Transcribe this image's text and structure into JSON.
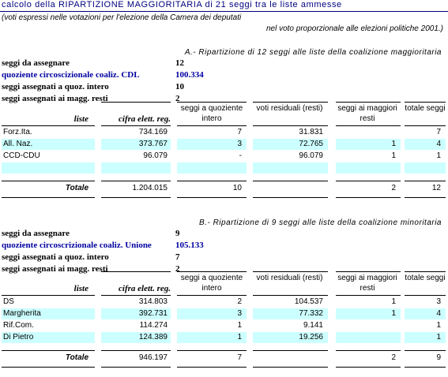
{
  "title": "calcolo della RIPARTIZIONE MAGGIORITARIA di 21 seggi tra le liste ammesse",
  "note_line1": "(voti espressi nelle votazioni per l'elezione della Camera dei deputati",
  "note_line2": "nel voto proporzionale alle elezioni politiche 2001.)",
  "headers": {
    "liste": "liste",
    "cifra": "cifra elett. reg.",
    "seggi_q": "seggi a quoziente intero",
    "voti_r": "voti residuali (resti)",
    "seggi_m": "seggi ai maggiori resti",
    "totale": "totale seggi"
  },
  "section_a": {
    "title": "A.- Ripartizione di 12 seggi alle liste della coalizione maggioritaria",
    "info": [
      {
        "label": "seggi da assegnare",
        "value": "12",
        "blue": false
      },
      {
        "label": "quoziente circoscizionale coaliz. CDL",
        "value": "100.334",
        "blue": true
      },
      {
        "label": "seggi assegnati a quoz. intero",
        "value": "10",
        "blue": false
      },
      {
        "label": "seggi assegnati ai magg. resti",
        "value": "2",
        "blue": false
      }
    ],
    "rows": [
      {
        "name": "Forz.Ita.",
        "cifra": "734.169",
        "seggi_q": "7",
        "voti_r": "31.831",
        "seggi_m": "",
        "totale": "7",
        "cyan": false
      },
      {
        "name": "All. Naz.",
        "cifra": "373.767",
        "seggi_q": "3",
        "voti_r": "72.765",
        "seggi_m": "1",
        "totale": "4",
        "cyan": true
      },
      {
        "name": "CCD-CDU",
        "cifra": "96.079",
        "seggi_q": "-",
        "voti_r": "96.079",
        "seggi_m": "1",
        "totale": "1",
        "cyan": false
      },
      {
        "name": "",
        "cifra": "",
        "seggi_q": "",
        "voti_r": "",
        "seggi_m": "",
        "totale": "",
        "cyan": true
      }
    ],
    "totals": {
      "label": "Totale",
      "cifra": "1.204.015",
      "seggi_q": "10",
      "seggi_m": "2",
      "totale": "12"
    }
  },
  "section_b": {
    "title": "B.- Ripartizione di 9 seggi alle liste della coalizione minoritaria",
    "info": [
      {
        "label": "seggi da assegnare",
        "value": "9",
        "blue": false
      },
      {
        "label": "quoziente circoscrizionale coaliz. Unione",
        "value": "105.133",
        "blue": true
      },
      {
        "label": "seggi assegnati a quoz. intero",
        "value": "7",
        "blue": false
      },
      {
        "label": "seggi assegnati ai magg. resti",
        "value": "2",
        "blue": false
      }
    ],
    "rows": [
      {
        "name": "DS",
        "cifra": "314.803",
        "seggi_q": "2",
        "voti_r": "104.537",
        "seggi_m": "1",
        "totale": "3",
        "cyan": false
      },
      {
        "name": "Margherita",
        "cifra": "392.731",
        "seggi_q": "3",
        "voti_r": "77.332",
        "seggi_m": "1",
        "totale": "4",
        "cyan": true
      },
      {
        "name": "Rif.Com.",
        "cifra": "114.274",
        "seggi_q": "1",
        "voti_r": "9.141",
        "seggi_m": "",
        "totale": "1",
        "cyan": false
      },
      {
        "name": "Di Pietro",
        "cifra": "124.389",
        "seggi_q": "1",
        "voti_r": "19.256",
        "seggi_m": "",
        "totale": "1",
        "cyan": true
      }
    ],
    "totals": {
      "label": "Totale",
      "cifra": "946.197",
      "seggi_q": "7",
      "seggi_m": "2",
      "totale": "9"
    }
  }
}
